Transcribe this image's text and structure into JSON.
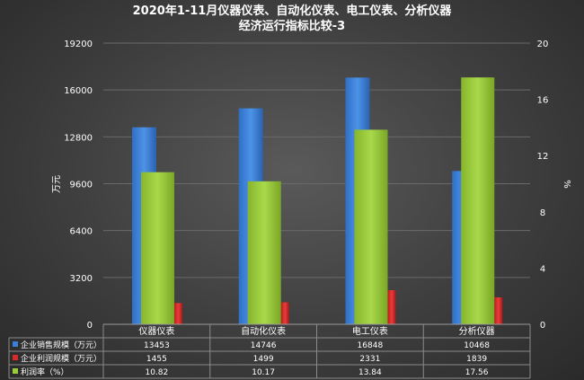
{
  "title_line1": "2020年1-11月仪器仪表、自动化仪表、电工仪表、分析仪器",
  "title_line2": "经济运行指标比较-3",
  "chart_data": {
    "type": "bar",
    "categories": [
      "仪器仪表",
      "自动化仪表",
      "电工仪表",
      "分析仪器"
    ],
    "series": [
      {
        "name": "企业销售规模（万元）",
        "axis": "left",
        "color": "#3a7fd5",
        "values": [
          13453,
          14746,
          16848,
          10468
        ]
      },
      {
        "name": "企业利润规模（万元）",
        "axis": "left",
        "color": "#d92a2a",
        "values": [
          1455,
          1499,
          2331,
          1839
        ]
      },
      {
        "name": "利润率（%）",
        "axis": "right",
        "color": "#9bcb3b",
        "values": [
          10.82,
          10.17,
          13.84,
          17.56
        ]
      }
    ],
    "table_values": [
      [
        "13453",
        "14746",
        "16848",
        "10468"
      ],
      [
        "1455",
        "1499",
        "2331",
        "1839"
      ],
      [
        "10.82",
        "10.17",
        "13.84",
        "17.56"
      ]
    ],
    "ylabel_left": "万元",
    "ylabel_right": "%",
    "ylim_left": [
      0,
      19200
    ],
    "yticks_left": [
      0,
      3200,
      6400,
      9600,
      12800,
      16000,
      19200
    ],
    "ylim_right": [
      0,
      20
    ],
    "yticks_right": [
      0,
      4,
      8,
      12,
      16,
      20
    ],
    "grid": true,
    "data_table": true
  }
}
